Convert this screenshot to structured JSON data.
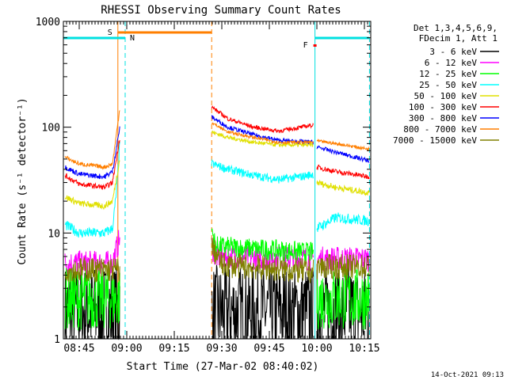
{
  "chart_data": {
    "type": "line",
    "title": "RHESSI Observing Summary Count Rates",
    "xlabel": "Start Time (27-Mar-02 08:40:02)",
    "ylabel": "Count Rate (s⁻¹ detector⁻¹)",
    "yscale": "log",
    "ylim": [
      1,
      1000
    ],
    "xlim_minutes": [
      0,
      97
    ],
    "x_ticks": [
      {
        "minute": 5,
        "label": "08:45"
      },
      {
        "minute": 20,
        "label": "09:00"
      },
      {
        "minute": 35,
        "label": "09:15"
      },
      {
        "minute": 50,
        "label": "09:30"
      },
      {
        "minute": 65,
        "label": "09:45"
      },
      {
        "minute": 80,
        "label": "10:00"
      },
      {
        "minute": 95,
        "label": "10:15"
      }
    ],
    "y_ticks": [
      {
        "value": 1,
        "label": "1"
      },
      {
        "value": 10,
        "label": "10"
      },
      {
        "value": 100,
        "label": "100"
      },
      {
        "value": 1000,
        "label": "1000"
      }
    ],
    "legend_header": [
      "Det 1,3,4,5,6,9,",
      "FDecim 1, Att 1"
    ],
    "legend_position": "right",
    "footer": "14-Oct-2021 09:13",
    "markers": [
      {
        "label": "S",
        "color": "#ff7f00",
        "minute": 17.2
      },
      {
        "label": "N",
        "color": "#00e0e0",
        "minute": 19.5
      },
      {
        "label": "F",
        "color": "#ff0000",
        "minute": 79.4
      }
    ],
    "gaps": [
      [
        17.8,
        46.8
      ]
    ],
    "series": [
      {
        "name": "3 - 6 keV",
        "color": "#000000",
        "segments": [
          {
            "x": [
              0.5,
              17.8
            ],
            "y": [
              1.8,
              1.8
            ],
            "noise": 0.45
          },
          {
            "x": [
              46.8,
              79.0
            ],
            "y": [
              1.8,
              1.8
            ],
            "noise": 0.45
          },
          {
            "x": [
              80.0,
              96.6
            ],
            "y": [
              1.8,
              1.8
            ],
            "noise": 0.45
          }
        ]
      },
      {
        "name": "6 - 12 keV",
        "color": "#ff00ff",
        "segments": [
          {
            "x": [
              0.5,
              15.5,
              17.8
            ],
            "y": [
              5.2,
              5.2,
              9
            ],
            "noise": 0.12
          },
          {
            "x": [
              46.8,
              48,
              79.0
            ],
            "y": [
              7.5,
              6,
              5.7
            ],
            "noise": 0.12
          },
          {
            "x": [
              80.0,
              96.6
            ],
            "y": [
              5.7,
              5.7
            ],
            "noise": 0.12
          }
        ]
      },
      {
        "name": "12 - 25 keV",
        "color": "#00ff00",
        "segments": [
          {
            "x": [
              0.5,
              17.8
            ],
            "y": [
              2.4,
              2.4
            ],
            "noise": 0.3
          },
          {
            "x": [
              46.8,
              48,
              79.0
            ],
            "y": [
              11,
              7.5,
              6.5
            ],
            "noise": 0.1
          },
          {
            "x": [
              80.0,
              96.6
            ],
            "y": [
              2.4,
              2.4
            ],
            "noise": 0.3
          }
        ]
      },
      {
        "name": "25 - 50 keV",
        "color": "#00ffff",
        "segments": [
          {
            "x": [
              0.5,
              5,
              13,
              15.5,
              16.8,
              17.8
            ],
            "y": [
              12,
              10,
              10,
              11,
              25,
              70
            ],
            "noise": 0.05
          },
          {
            "x": [
              46.8,
              52,
              60,
              68,
              75,
              79.0
            ],
            "y": [
              45,
              40,
              35,
              32,
              34,
              36
            ],
            "noise": 0.04
          },
          {
            "x": [
              80.0,
              86,
              96.6
            ],
            "y": [
              11,
              14,
              13
            ],
            "noise": 0.05
          }
        ]
      },
      {
        "name": "50 - 100 keV",
        "color": "#e0e000",
        "segments": [
          {
            "x": [
              0.5,
              5,
              13,
              15.5,
              17.8
            ],
            "y": [
              22,
              19,
              18,
              20,
              50
            ],
            "noise": 0.03
          },
          {
            "x": [
              46.8,
              52,
              60,
              68,
              79.0
            ],
            "y": [
              90,
              80,
              72,
              68,
              68
            ],
            "noise": 0.02
          },
          {
            "x": [
              80.0,
              86,
              96.6
            ],
            "y": [
              30,
              27,
              24
            ],
            "noise": 0.03
          }
        ]
      },
      {
        "name": "100 - 300 keV",
        "color": "#ff0000",
        "segments": [
          {
            "x": [
              0.5,
              5,
              13,
              15.5,
              17.8
            ],
            "y": [
              35,
              29,
              27,
              30,
              80
            ],
            "noise": 0.025
          },
          {
            "x": [
              46.8,
              52,
              60,
              68,
              75,
              79.0
            ],
            "y": [
              155,
              120,
              100,
              92,
              100,
              105
            ],
            "noise": 0.02
          },
          {
            "x": [
              80.0,
              86,
              96.6
            ],
            "y": [
              42,
              38,
              34
            ],
            "noise": 0.025
          }
        ]
      },
      {
        "name": "300 - 800 keV",
        "color": "#0000ff",
        "segments": [
          {
            "x": [
              0.5,
              5,
              13,
              15.5,
              17.8
            ],
            "y": [
              42,
              36,
              34,
              38,
              100
            ],
            "noise": 0.025
          },
          {
            "x": [
              46.8,
              52,
              60,
              68,
              79.0
            ],
            "y": [
              125,
              100,
              85,
              75,
              72
            ],
            "noise": 0.02
          },
          {
            "x": [
              80.0,
              86,
              96.6
            ],
            "y": [
              65,
              58,
              48
            ],
            "noise": 0.02
          }
        ]
      },
      {
        "name": "800 - 7000 keV",
        "color": "#ff7f00",
        "segments": [
          {
            "x": [
              0.5,
              5,
              13,
              15.5,
              17.8
            ],
            "y": [
              52,
              45,
              42,
              45,
              150
            ],
            "noise": 0.02
          },
          {
            "x": [
              46.8,
              52,
              60,
              68,
              79.0
            ],
            "y": [
              110,
              90,
              80,
              72,
              72
            ],
            "noise": 0.015
          },
          {
            "x": [
              80.0,
              86,
              96.6
            ],
            "y": [
              74,
              70,
              62
            ],
            "noise": 0.015
          }
        ]
      },
      {
        "name": "7000 - 15000 keV",
        "color": "#808000",
        "segments": [
          {
            "x": [
              0.5,
              17.8
            ],
            "y": [
              4.5,
              4.5
            ],
            "noise": 0.12
          },
          {
            "x": [
              46.8,
              50,
              79.0
            ],
            "y": [
              7.5,
              5,
              4.3
            ],
            "noise": 0.12
          },
          {
            "x": [
              80.0,
              96.6
            ],
            "y": [
              4.8,
              4.8
            ],
            "noise": 0.12
          }
        ]
      }
    ]
  }
}
